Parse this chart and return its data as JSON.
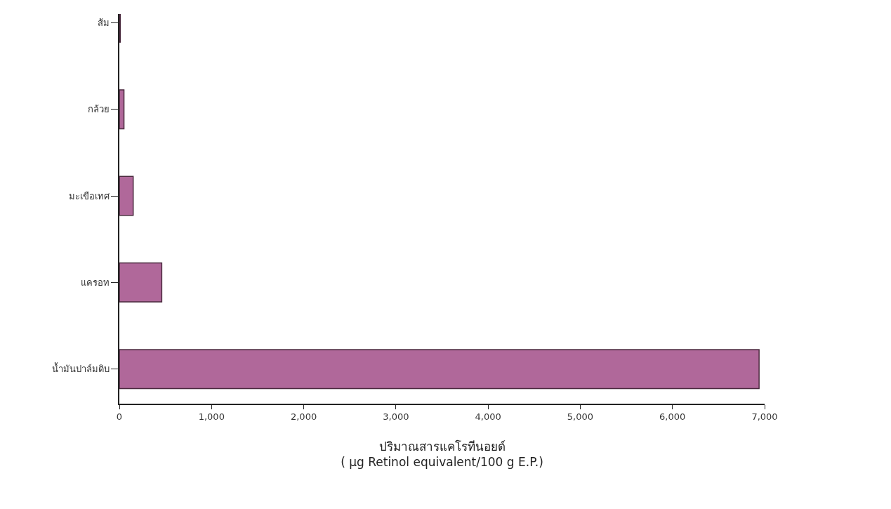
{
  "chart_data": {
    "type": "bar",
    "orientation": "horizontal",
    "xlabel": "ปริมาณสารแคโรทีนอยด์\n( µg Retinol equivalent/100 g E.P.)",
    "categories": [
      "ส้ม",
      "กล้วย",
      "มะเขือเทศ",
      "แครอท",
      "น้ำมันปาล์มดิบ"
    ],
    "values": [
      10,
      50,
      150,
      460,
      6940
    ],
    "color": "#b0689a",
    "xlim": [
      0,
      7000
    ],
    "xticks": [
      0,
      {
        "value": 1000,
        "label": "1,000"
      },
      {
        "value": 2000,
        "label": "2,000"
      },
      {
        "value": 3000,
        "label": "3,000"
      },
      {
        "value": 4000,
        "label": "4,000"
      },
      {
        "value": 5000,
        "label": "5,000"
      },
      {
        "value": 6000,
        "label": "6,000"
      },
      {
        "value": 7000,
        "label": "7,000"
      }
    ],
    "grid": false
  }
}
